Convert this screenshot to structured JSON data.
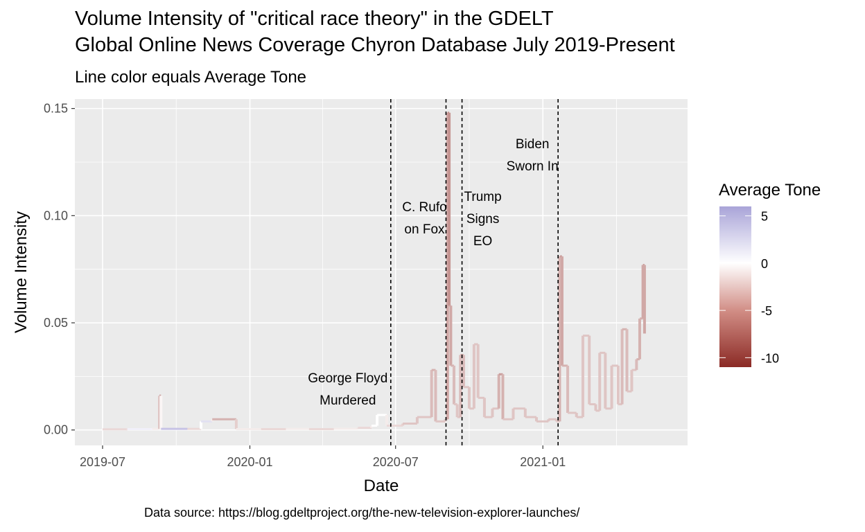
{
  "title_line1": "Volume Intensity of \"critical race theory\" in the GDELT",
  "title_line2": "Global Online News Coverage Chyron Database July 2019-Present",
  "subtitle": "Line color equals Average Tone",
  "caption": "Data source: https://blog.gdeltproject.org/the-new-television-explorer-launches/",
  "chart_data": {
    "type": "line",
    "xlabel": "Date",
    "ylabel": "Volume Intensity",
    "x_ticks": [
      "2019-07",
      "2020-01",
      "2020-07",
      "2021-01"
    ],
    "y_ticks": [
      "0.00",
      "0.05",
      "0.10",
      "0.15"
    ],
    "ylim": [
      0,
      0.15
    ],
    "xlim": [
      "2019-07-01",
      "2021-05-15"
    ],
    "grid": true,
    "legend": {
      "title": "Average Tone",
      "position": "right",
      "labels": [
        "5",
        "0",
        "-5",
        "-10"
      ],
      "scale": {
        "min": -11,
        "max": 6,
        "low_color": "#8b2a25",
        "mid_color": "#ffffff",
        "high_color": "#a9a4d8"
      }
    },
    "events": [
      {
        "date": "2020-06-25",
        "label": [
          "George Floyd",
          "Murdered"
        ]
      },
      {
        "date": "2020-09-02",
        "label": [
          "C. Rufo",
          "on Fox"
        ]
      },
      {
        "date": "2020-09-22",
        "label": [
          "Trump",
          "Signs",
          "EO"
        ]
      },
      {
        "date": "2021-01-20",
        "label": [
          "Biden",
          "Sworn In"
        ]
      }
    ],
    "series": [
      {
        "points": [
          [
            "2019-07-01",
            0.0003,
            -2
          ],
          [
            "2019-08-01",
            0.0004,
            1
          ],
          [
            "2019-09-01",
            0.0005,
            -1
          ],
          [
            "2019-09-10",
            0.016,
            -5
          ],
          [
            "2019-09-12",
            0.0005,
            4
          ],
          [
            "2019-10-15",
            0.0005,
            -2
          ],
          [
            "2019-11-01",
            0.004,
            2
          ],
          [
            "2019-11-15",
            0.005,
            -4
          ],
          [
            "2019-12-15",
            0.0004,
            -1
          ],
          [
            "2020-01-15",
            0.0004,
            -2
          ],
          [
            "2020-02-15",
            0.0005,
            -1
          ],
          [
            "2020-03-15",
            0.0004,
            -2
          ],
          [
            "2020-04-15",
            0.0006,
            -1
          ],
          [
            "2020-05-15",
            0.001,
            -2
          ],
          [
            "2020-06-01",
            0.002,
            0
          ],
          [
            "2020-06-08",
            0.007,
            0
          ],
          [
            "2020-06-20",
            0.002,
            -2
          ],
          [
            "2020-07-10",
            0.003,
            -3
          ],
          [
            "2020-07-28",
            0.006,
            -3
          ],
          [
            "2020-08-15",
            0.028,
            -4
          ],
          [
            "2020-08-20",
            0.004,
            -3
          ],
          [
            "2020-09-01",
            0.005,
            -3
          ],
          [
            "2020-09-04",
            0.148,
            -6
          ],
          [
            "2020-09-06",
            0.058,
            -5
          ],
          [
            "2020-09-08",
            0.03,
            -4
          ],
          [
            "2020-09-12",
            0.012,
            -3
          ],
          [
            "2020-09-16",
            0.006,
            -3
          ],
          [
            "2020-09-20",
            0.035,
            -4
          ],
          [
            "2020-09-24",
            0.02,
            -3
          ],
          [
            "2020-10-01",
            0.01,
            -3
          ],
          [
            "2020-10-07",
            0.04,
            -3
          ],
          [
            "2020-10-12",
            0.015,
            -3
          ],
          [
            "2020-10-20",
            0.006,
            -3
          ],
          [
            "2020-10-30",
            0.01,
            -3
          ],
          [
            "2020-11-07",
            0.026,
            -5
          ],
          [
            "2020-11-12",
            0.005,
            -3
          ],
          [
            "2020-11-25",
            0.01,
            -3
          ],
          [
            "2020-12-10",
            0.006,
            -3
          ],
          [
            "2020-12-24",
            0.004,
            -3
          ],
          [
            "2021-01-08",
            0.005,
            -3
          ],
          [
            "2021-01-18",
            0.004,
            -3
          ],
          [
            "2021-01-22",
            0.081,
            -5
          ],
          [
            "2021-01-25",
            0.03,
            -4
          ],
          [
            "2021-02-01",
            0.008,
            -3
          ],
          [
            "2021-02-12",
            0.006,
            -3
          ],
          [
            "2021-02-20",
            0.044,
            -3
          ],
          [
            "2021-02-28",
            0.012,
            -3
          ],
          [
            "2021-03-08",
            0.009,
            -3
          ],
          [
            "2021-03-13",
            0.036,
            -3
          ],
          [
            "2021-03-20",
            0.01,
            -3
          ],
          [
            "2021-03-28",
            0.03,
            -3
          ],
          [
            "2021-04-05",
            0.012,
            -3
          ],
          [
            "2021-04-10",
            0.047,
            -4
          ],
          [
            "2021-04-16",
            0.018,
            -3
          ],
          [
            "2021-04-22",
            0.028,
            -3
          ],
          [
            "2021-04-28",
            0.033,
            -4
          ],
          [
            "2021-05-02",
            0.052,
            -4
          ],
          [
            "2021-05-06",
            0.077,
            -5
          ],
          [
            "2021-05-08",
            0.045,
            -4
          ]
        ]
      }
    ]
  }
}
